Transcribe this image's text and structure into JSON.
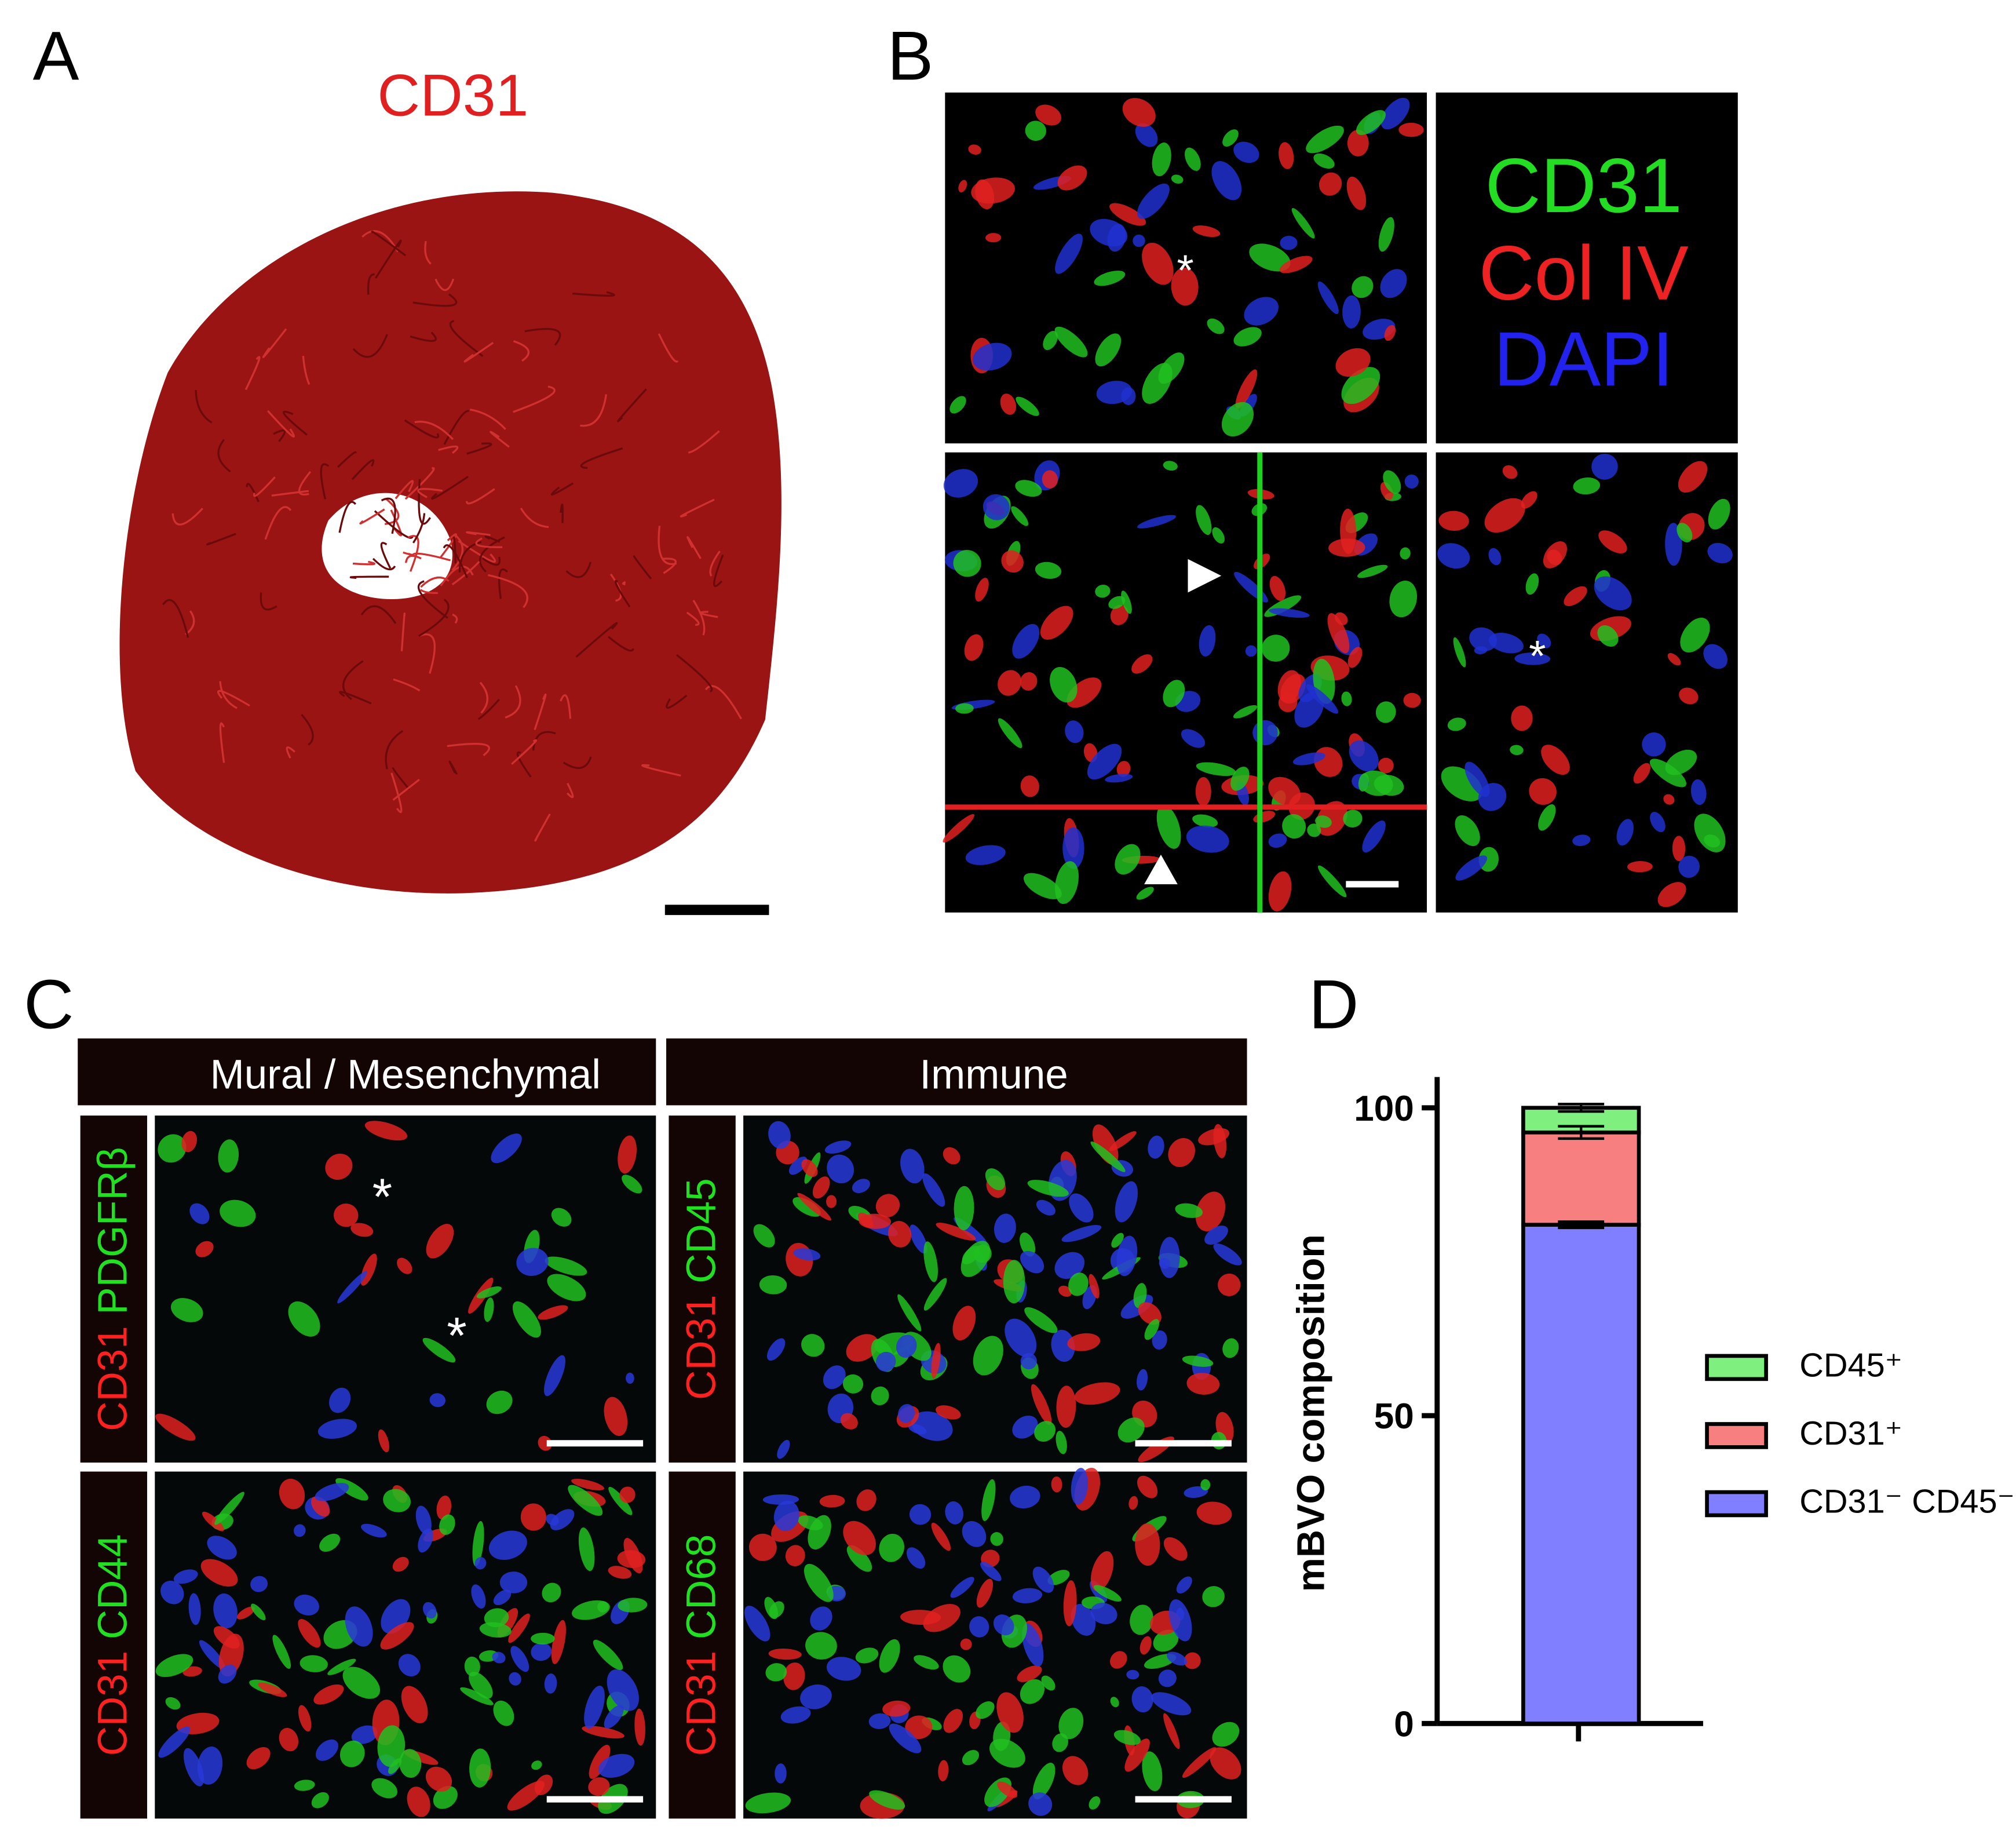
{
  "panels": {
    "A": {
      "label": "A",
      "title": "CD31"
    },
    "B": {
      "label": "B",
      "legend": [
        "CD31",
        "Col IV",
        "DAPI"
      ],
      "marker": "*"
    },
    "C": {
      "label": "C",
      "columns": [
        "Mural / Mesenchymal",
        "Immune"
      ],
      "stains": [
        [
          "CD31",
          "PDGFRβ"
        ],
        [
          "CD31",
          "CD44"
        ],
        [
          "CD31",
          "CD45"
        ],
        [
          "CD31",
          "CD68"
        ]
      ],
      "marker": "*"
    },
    "D": {
      "label": "D"
    }
  },
  "chart_data": {
    "type": "stacked-bar",
    "categories": [
      null
    ],
    "ylabel": "mBVO composition",
    "ylim": [
      0,
      105
    ],
    "yticks": [
      0,
      50,
      100
    ],
    "series": [
      {
        "name": "CD31⁻ CD45⁻",
        "color": "#7f7fff",
        "values": [
          81
        ],
        "errors": [
          0.5
        ]
      },
      {
        "name": "CD31⁺",
        "color": "#f87f7f",
        "values": [
          15
        ],
        "errors": [
          1
        ]
      },
      {
        "name": "CD45⁺",
        "color": "#7fef7f",
        "values": [
          4
        ],
        "errors": [
          0.6
        ]
      }
    ]
  }
}
